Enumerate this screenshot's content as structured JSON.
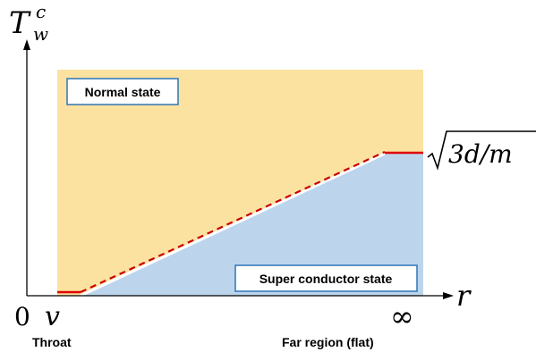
{
  "diagram": {
    "y_axis_symbol": "T",
    "y_axis_sub": "w",
    "y_axis_sup": "c",
    "x_axis_symbol": "r",
    "origin_label": "0",
    "throat_symbol": "v",
    "infinity_symbol": "∞",
    "asymptote_radicand": "3d/m",
    "regions": {
      "normal": "Normal state",
      "superconductor": "Super conductor state"
    },
    "axis_captions": {
      "throat": "Throat",
      "far": "Far region (flat)"
    },
    "colors": {
      "normal_fill": "#fbe2a0",
      "superconductor_fill": "#bdd5ec",
      "boundary_solid": "#e00000",
      "boundary_dashed": "#cc0000",
      "label_box_border": "#2e75b6"
    }
  }
}
